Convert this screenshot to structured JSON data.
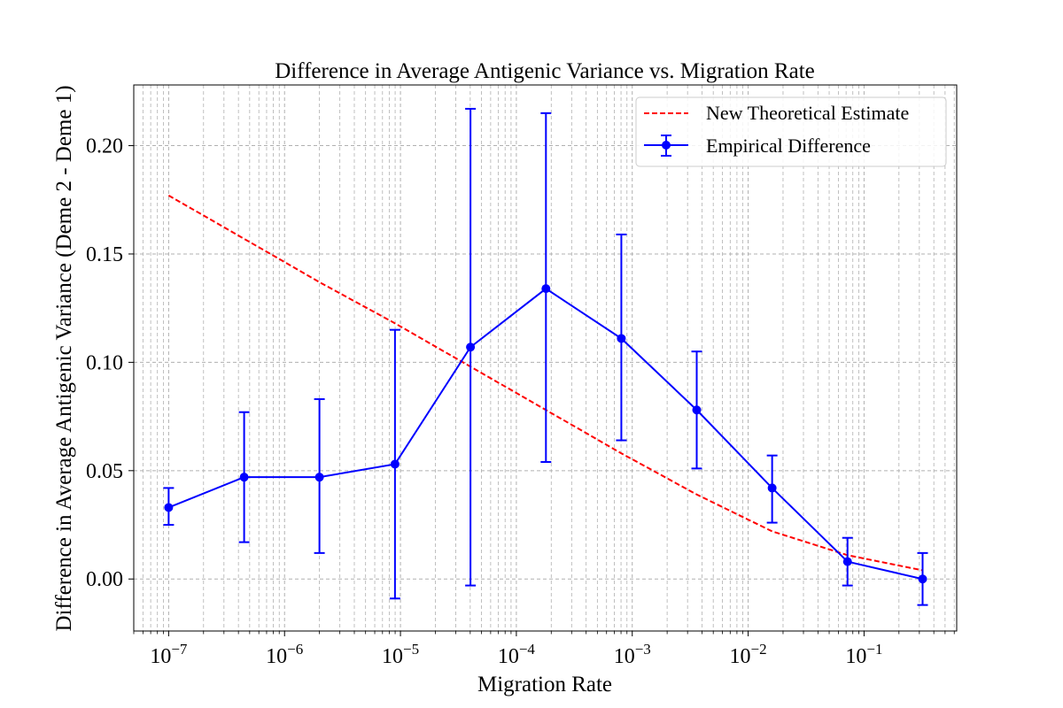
{
  "chart_data": {
    "type": "line",
    "title": "Difference in Average Antigenic Variance vs. Migration Rate",
    "xlabel": "Migration Rate",
    "ylabel": "Difference in Average Antigenic Variance (Deme 2 - Deme 1)",
    "x_scale": "log",
    "xlim": [
      5e-08,
      0.63
    ],
    "ylim": [
      -0.024,
      0.228
    ],
    "grid": "on",
    "legend_position": "top-right",
    "x_ticks": [
      {
        "base": "10",
        "exp": "−7",
        "value": 1e-07
      },
      {
        "base": "10",
        "exp": "−6",
        "value": 1e-06
      },
      {
        "base": "10",
        "exp": "−5",
        "value": 1e-05
      },
      {
        "base": "10",
        "exp": "−4",
        "value": 0.0001
      },
      {
        "base": "10",
        "exp": "−3",
        "value": 0.001
      },
      {
        "base": "10",
        "exp": "−2",
        "value": 0.01
      },
      {
        "base": "10",
        "exp": "−1",
        "value": 0.1
      }
    ],
    "y_ticks": [
      {
        "label": "0.00",
        "value": 0.0
      },
      {
        "label": "0.05",
        "value": 0.05
      },
      {
        "label": "0.10",
        "value": 0.1
      },
      {
        "label": "0.15",
        "value": 0.15
      },
      {
        "label": "0.20",
        "value": 0.2
      }
    ],
    "series": [
      {
        "name": "New Theoretical Estimate",
        "style": "dashed",
        "color": "#ff0000",
        "x": [
          1e-07,
          4.48e-07,
          2e-06,
          8.97e-06,
          4.02e-05,
          0.00018,
          0.000805,
          0.0036,
          0.0161,
          0.072,
          0.32
        ],
        "y": [
          0.177,
          0.157,
          0.137,
          0.118,
          0.098,
          0.078,
          0.058,
          0.039,
          0.022,
          0.011,
          0.004
        ]
      },
      {
        "name": "Empirical Difference",
        "style": "solid-markers-errorbars",
        "color": "#0000ff",
        "x": [
          1e-07,
          4.48e-07,
          2e-06,
          8.97e-06,
          4.02e-05,
          0.00018,
          0.000805,
          0.0036,
          0.0161,
          0.072,
          0.32
        ],
        "y": [
          0.033,
          0.047,
          0.047,
          0.053,
          0.107,
          0.134,
          0.111,
          0.078,
          0.042,
          0.008,
          0.0
        ],
        "err_low": [
          0.025,
          0.017,
          0.012,
          -0.009,
          -0.003,
          0.054,
          0.064,
          0.051,
          0.026,
          -0.003,
          -0.012
        ],
        "err_high": [
          0.042,
          0.077,
          0.083,
          0.115,
          0.217,
          0.215,
          0.159,
          0.105,
          0.057,
          0.019,
          0.012
        ]
      }
    ]
  }
}
